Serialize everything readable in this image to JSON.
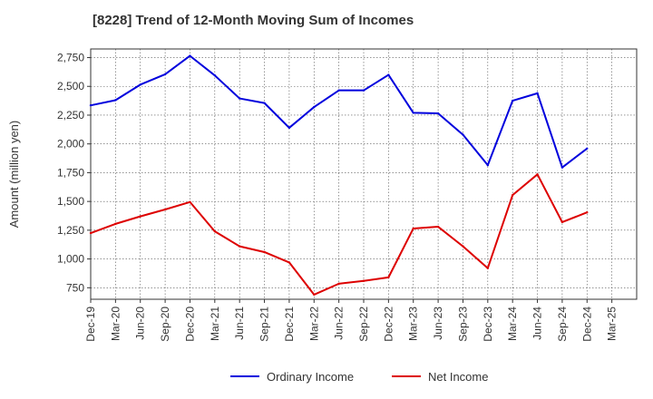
{
  "chart_data": {
    "type": "line",
    "title": "[8228]  Trend of 12-Month Moving Sum of Incomes",
    "ylabel": "Amount (million yen)",
    "xlabel": "",
    "ylim": [
      650,
      2825
    ],
    "yticks": [
      750,
      1000,
      1250,
      1500,
      1750,
      2000,
      2250,
      2500,
      2750
    ],
    "ytick_labels": [
      "750",
      "1,000",
      "1,250",
      "1,500",
      "1,750",
      "2,000",
      "2,250",
      "2,500",
      "2,750"
    ],
    "categories": [
      "Dec-19",
      "Mar-20",
      "Jun-20",
      "Sep-20",
      "Dec-20",
      "Mar-21",
      "Jun-21",
      "Sep-21",
      "Dec-21",
      "Mar-22",
      "Jun-22",
      "Sep-22",
      "Dec-22",
      "Mar-23",
      "Jun-23",
      "Sep-23",
      "Dec-23",
      "Mar-24",
      "Jun-24",
      "Sep-24",
      "Dec-24",
      "Mar-25"
    ],
    "grid": true,
    "legend_position": "bottom",
    "series": [
      {
        "name": "Ordinary Income",
        "color": "#0000dd",
        "values": [
          2335,
          2380,
          2515,
          2605,
          2765,
          2595,
          2395,
          2355,
          2140,
          2320,
          2465,
          2465,
          2600,
          2270,
          2265,
          2080,
          1815,
          2375,
          2440,
          1795,
          1960,
          null
        ]
      },
      {
        "name": "Net Income",
        "color": "#dd0000",
        "values": [
          1225,
          1305,
          1370,
          1430,
          1495,
          1240,
          1110,
          1060,
          970,
          690,
          785,
          810,
          840,
          1265,
          1280,
          1110,
          920,
          1555,
          1735,
          1320,
          1405,
          null
        ]
      }
    ]
  }
}
